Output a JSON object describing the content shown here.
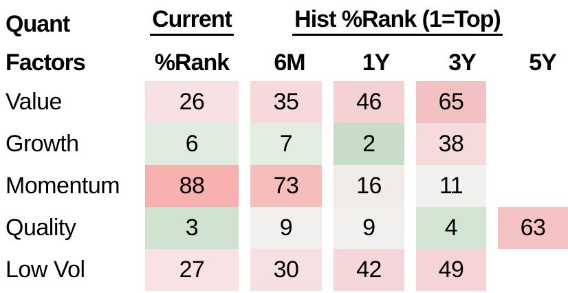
{
  "colors": {
    "background": "#ffffff",
    "text": "#000000",
    "underline": "#000000",
    "green_strong": "#c7ddc8",
    "red_strong": "#f8b1ae",
    "neutral": "#f1f0ef"
  },
  "header": {
    "title_line1": "Quant",
    "title_line2": "Factors",
    "current_group": "Current",
    "current_col": "%Rank",
    "hist_group": "Hist %Rank (1=Top)",
    "hist_cols": [
      "6M",
      "1Y",
      "3Y",
      "5Y"
    ]
  },
  "table": {
    "rows": [
      {
        "label": "Value",
        "cells": [
          {
            "v": "26",
            "bg": "#f8e1e3"
          },
          {
            "v": "35",
            "bg": "#f7d9dc"
          },
          {
            "v": "46",
            "bg": "#f6d1d4"
          },
          {
            "v": "65",
            "bg": "#f4c1c3"
          },
          {
            "v": "",
            "bg": ""
          }
        ]
      },
      {
        "label": "Growth",
        "cells": [
          {
            "v": "6",
            "bg": "#e0ecdf"
          },
          {
            "v": "7",
            "bg": "#e3eee3"
          },
          {
            "v": "2",
            "bg": "#c7ddc8"
          },
          {
            "v": "38",
            "bg": "#f6dbdd"
          },
          {
            "v": "",
            "bg": ""
          }
        ]
      },
      {
        "label": "Momentum",
        "cells": [
          {
            "v": "88",
            "bg": "#f8b1ae"
          },
          {
            "v": "73",
            "bg": "#f6bdbd"
          },
          {
            "v": "16",
            "bg": "#f1ebe9"
          },
          {
            "v": "11",
            "bg": "#f0f0ee"
          },
          {
            "v": "",
            "bg": ""
          }
        ]
      },
      {
        "label": "Quality",
        "cells": [
          {
            "v": "3",
            "bg": "#cfe3d0"
          },
          {
            "v": "9",
            "bg": "#f1f0ef"
          },
          {
            "v": "9",
            "bg": "#f1f0ef"
          },
          {
            "v": "4",
            "bg": "#d2e5d3"
          },
          {
            "v": "63",
            "bg": "#f5c3c4"
          }
        ]
      },
      {
        "label": "Low Vol",
        "cells": [
          {
            "v": "27",
            "bg": "#f8e2e4"
          },
          {
            "v": "30",
            "bg": "#f7e0e1"
          },
          {
            "v": "42",
            "bg": "#f5d7d9"
          },
          {
            "v": "49",
            "bg": "#f6d3d5"
          },
          {
            "v": "",
            "bg": ""
          }
        ]
      }
    ]
  },
  "chart_data": {
    "type": "heatmap",
    "title": "Quant Factors %Rank (1=Top)",
    "rows": [
      "Value",
      "Growth",
      "Momentum",
      "Quality",
      "Low Vol"
    ],
    "columns": [
      "Current %Rank",
      "6M",
      "1Y",
      "3Y",
      "5Y"
    ],
    "values": [
      [
        26,
        35,
        46,
        65,
        null
      ],
      [
        6,
        7,
        2,
        38,
        null
      ],
      [
        88,
        73,
        16,
        11,
        null
      ],
      [
        3,
        9,
        9,
        4,
        63
      ],
      [
        27,
        30,
        42,
        49,
        null
      ]
    ],
    "scale_note": "1=Top",
    "color_scale": {
      "low": "green",
      "mid": "near-white",
      "high": "red"
    },
    "legend_position": "none",
    "grid": false
  }
}
